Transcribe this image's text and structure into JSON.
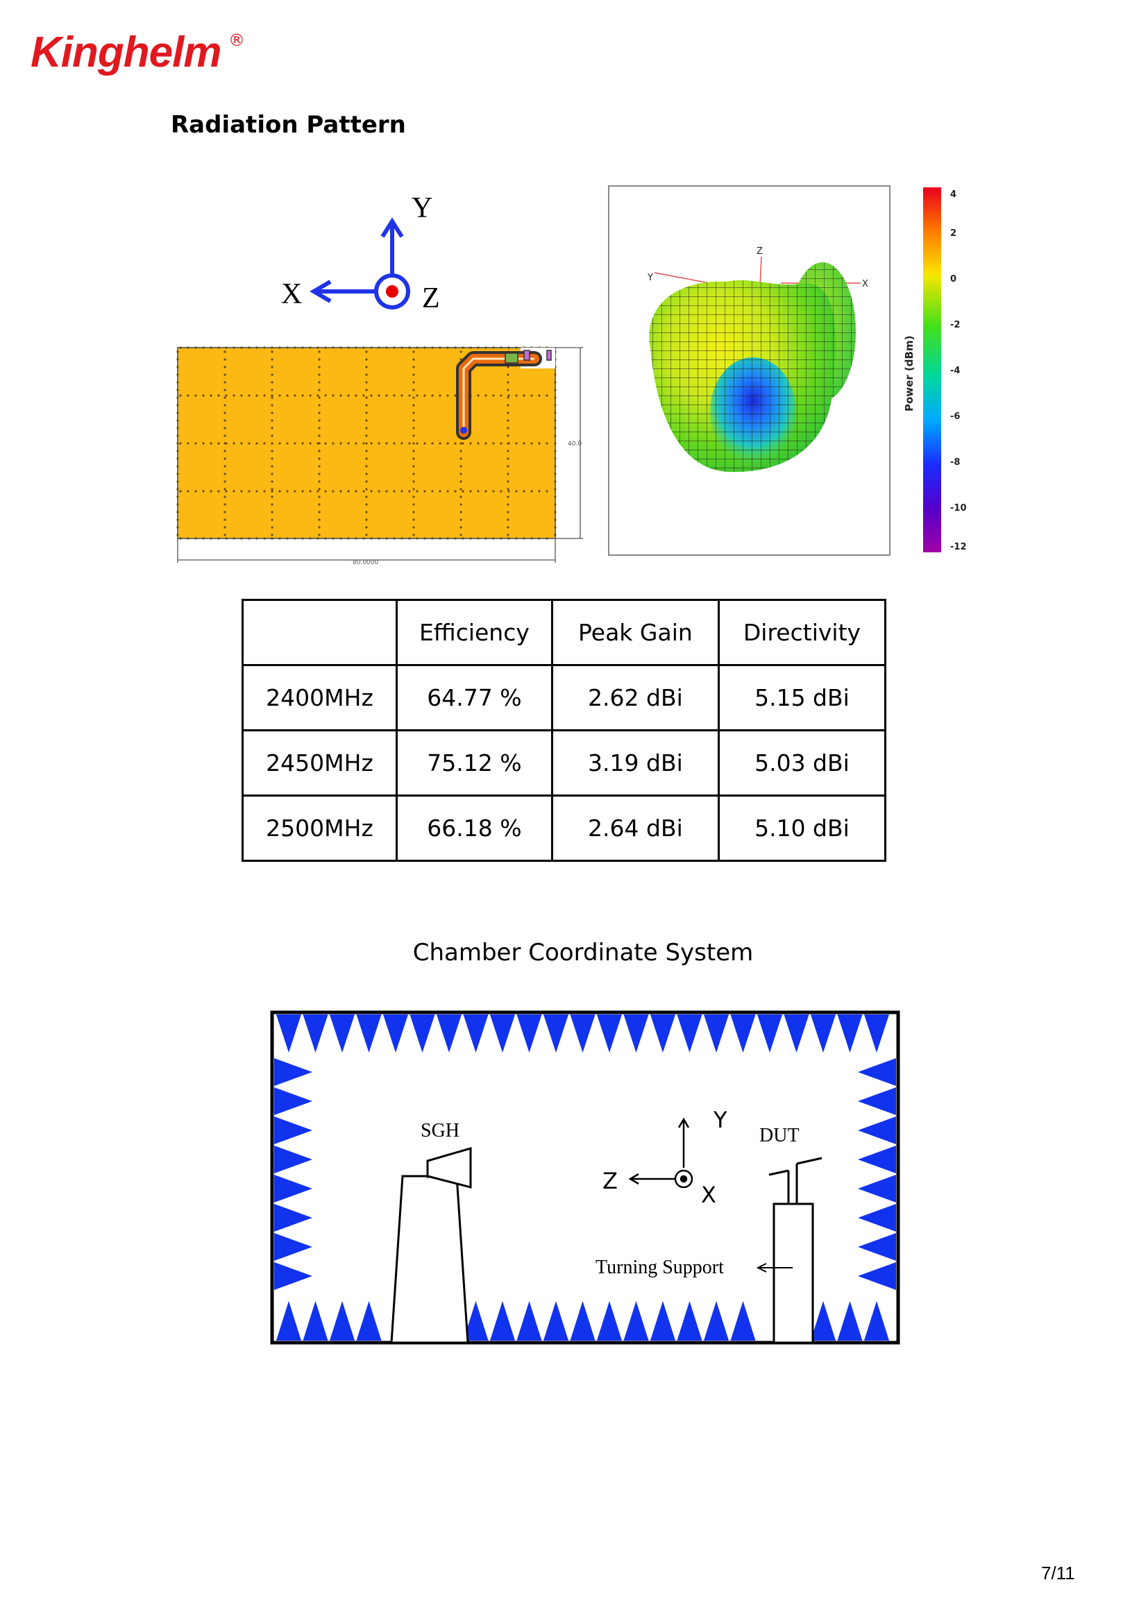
{
  "logo": {
    "text": "Kinghelm",
    "reg": "®"
  },
  "section_title": "Radiation Pattern",
  "antenna_axes": {
    "y": "Y",
    "x": "X",
    "z": "Z"
  },
  "pcb": {
    "width_label": "80.0000",
    "height_label": "40.0"
  },
  "pattern_plot": {
    "axis_z": "Z",
    "axis_y": "Y",
    "axis_x": "X",
    "colorbar_label": "Power (dBm)",
    "colorbar_ticks": [
      "4",
      "2",
      "0",
      "-2",
      "-4",
      "-6",
      "-8",
      "-10",
      "-12"
    ]
  },
  "table": {
    "headers": [
      "",
      "Efficiency",
      "Peak Gain",
      "Directivity"
    ],
    "rows": [
      [
        "2400MHz",
        "64.77 %",
        "2.62 dBi",
        "5.15 dBi"
      ],
      [
        "2450MHz",
        "75.12 %",
        "3.19 dBi",
        "5.03 dBi"
      ],
      [
        "2500MHz",
        "66.18 %",
        "2.64 dBi",
        "5.10 dBi"
      ]
    ]
  },
  "chamber": {
    "title": "Chamber Coordinate System",
    "sgh": "SGH",
    "dut": "DUT",
    "axis_y": "Y",
    "axis_z": "Z",
    "axis_x": "X",
    "turning_support": "Turning Support"
  },
  "page_number": "7/11",
  "colors": {
    "brand_red": "#e0191f",
    "axis_blue": "#1f33e6",
    "pcb_orange": "#fdb913",
    "absorber_blue": "#1133ee"
  }
}
